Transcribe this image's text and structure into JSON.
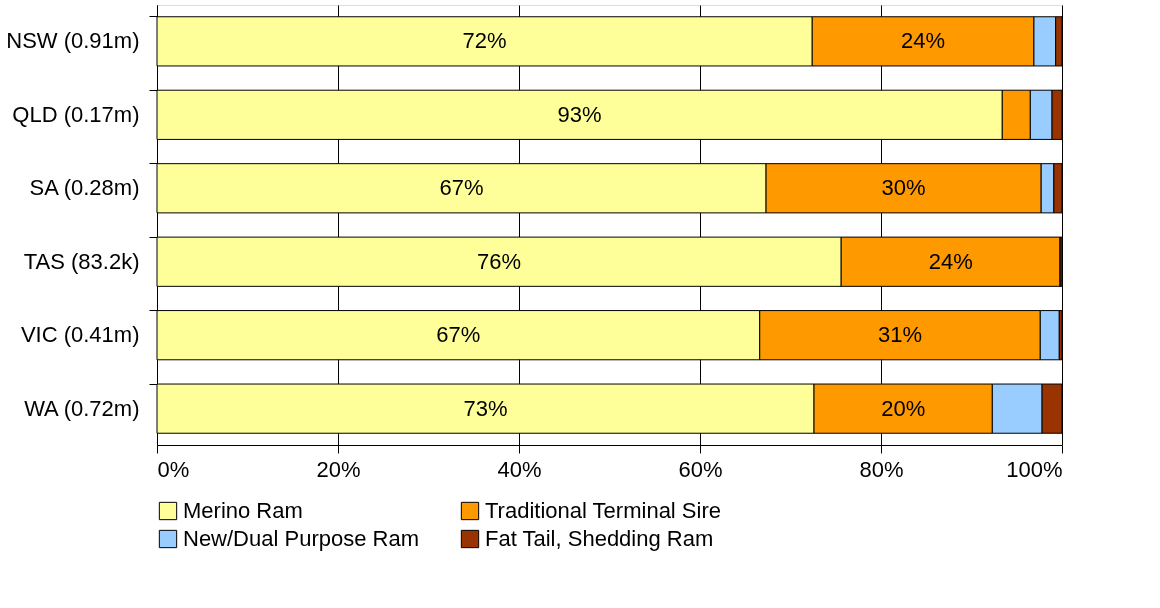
{
  "chart_data": {
    "type": "bar",
    "orientation": "horizontal",
    "stacked": true,
    "categories": [
      "NSW (0.91m)",
      "QLD (0.17m)",
      "SA (0.28m)",
      "TAS (83.2k)",
      "VIC (0.41m)",
      "WA (0.72m)"
    ],
    "series": [
      {
        "name": "Merino Ram",
        "color": "#ffff99",
        "values": [
          72.4,
          93.4,
          67.3,
          75.6,
          66.6,
          72.6
        ],
        "value_labels": [
          "72%",
          "93%",
          "67%",
          "76%",
          "67%",
          "73%"
        ]
      },
      {
        "name": "Traditional Terminal Sire",
        "color": "#ff9900",
        "values": [
          24.5,
          3.1,
          30.4,
          24.2,
          31.0,
          19.7
        ],
        "value_labels": [
          "24%",
          null,
          "30%",
          "24%",
          "31%",
          "20%"
        ]
      },
      {
        "name": "New/Dual Purpose Ram",
        "color": "#99ccff",
        "values": [
          2.4,
          2.4,
          1.4,
          0,
          2.1,
          5.5
        ]
      },
      {
        "name": "Fat Tail, Shedding Ram",
        "color": "#993300",
        "values": [
          0.7,
          1.1,
          0.9,
          0.2,
          0.3,
          2.2
        ]
      }
    ],
    "xlim": [
      0,
      100
    ],
    "xticks": [
      {
        "value": 0,
        "label": "0%"
      },
      {
        "value": 20,
        "label": "20%"
      },
      {
        "value": 40,
        "label": "40%"
      },
      {
        "value": 60,
        "label": "60%"
      },
      {
        "value": 80,
        "label": "80%"
      },
      {
        "value": 100,
        "label": "100%"
      }
    ],
    "grid": "x",
    "legend": "bottom"
  }
}
